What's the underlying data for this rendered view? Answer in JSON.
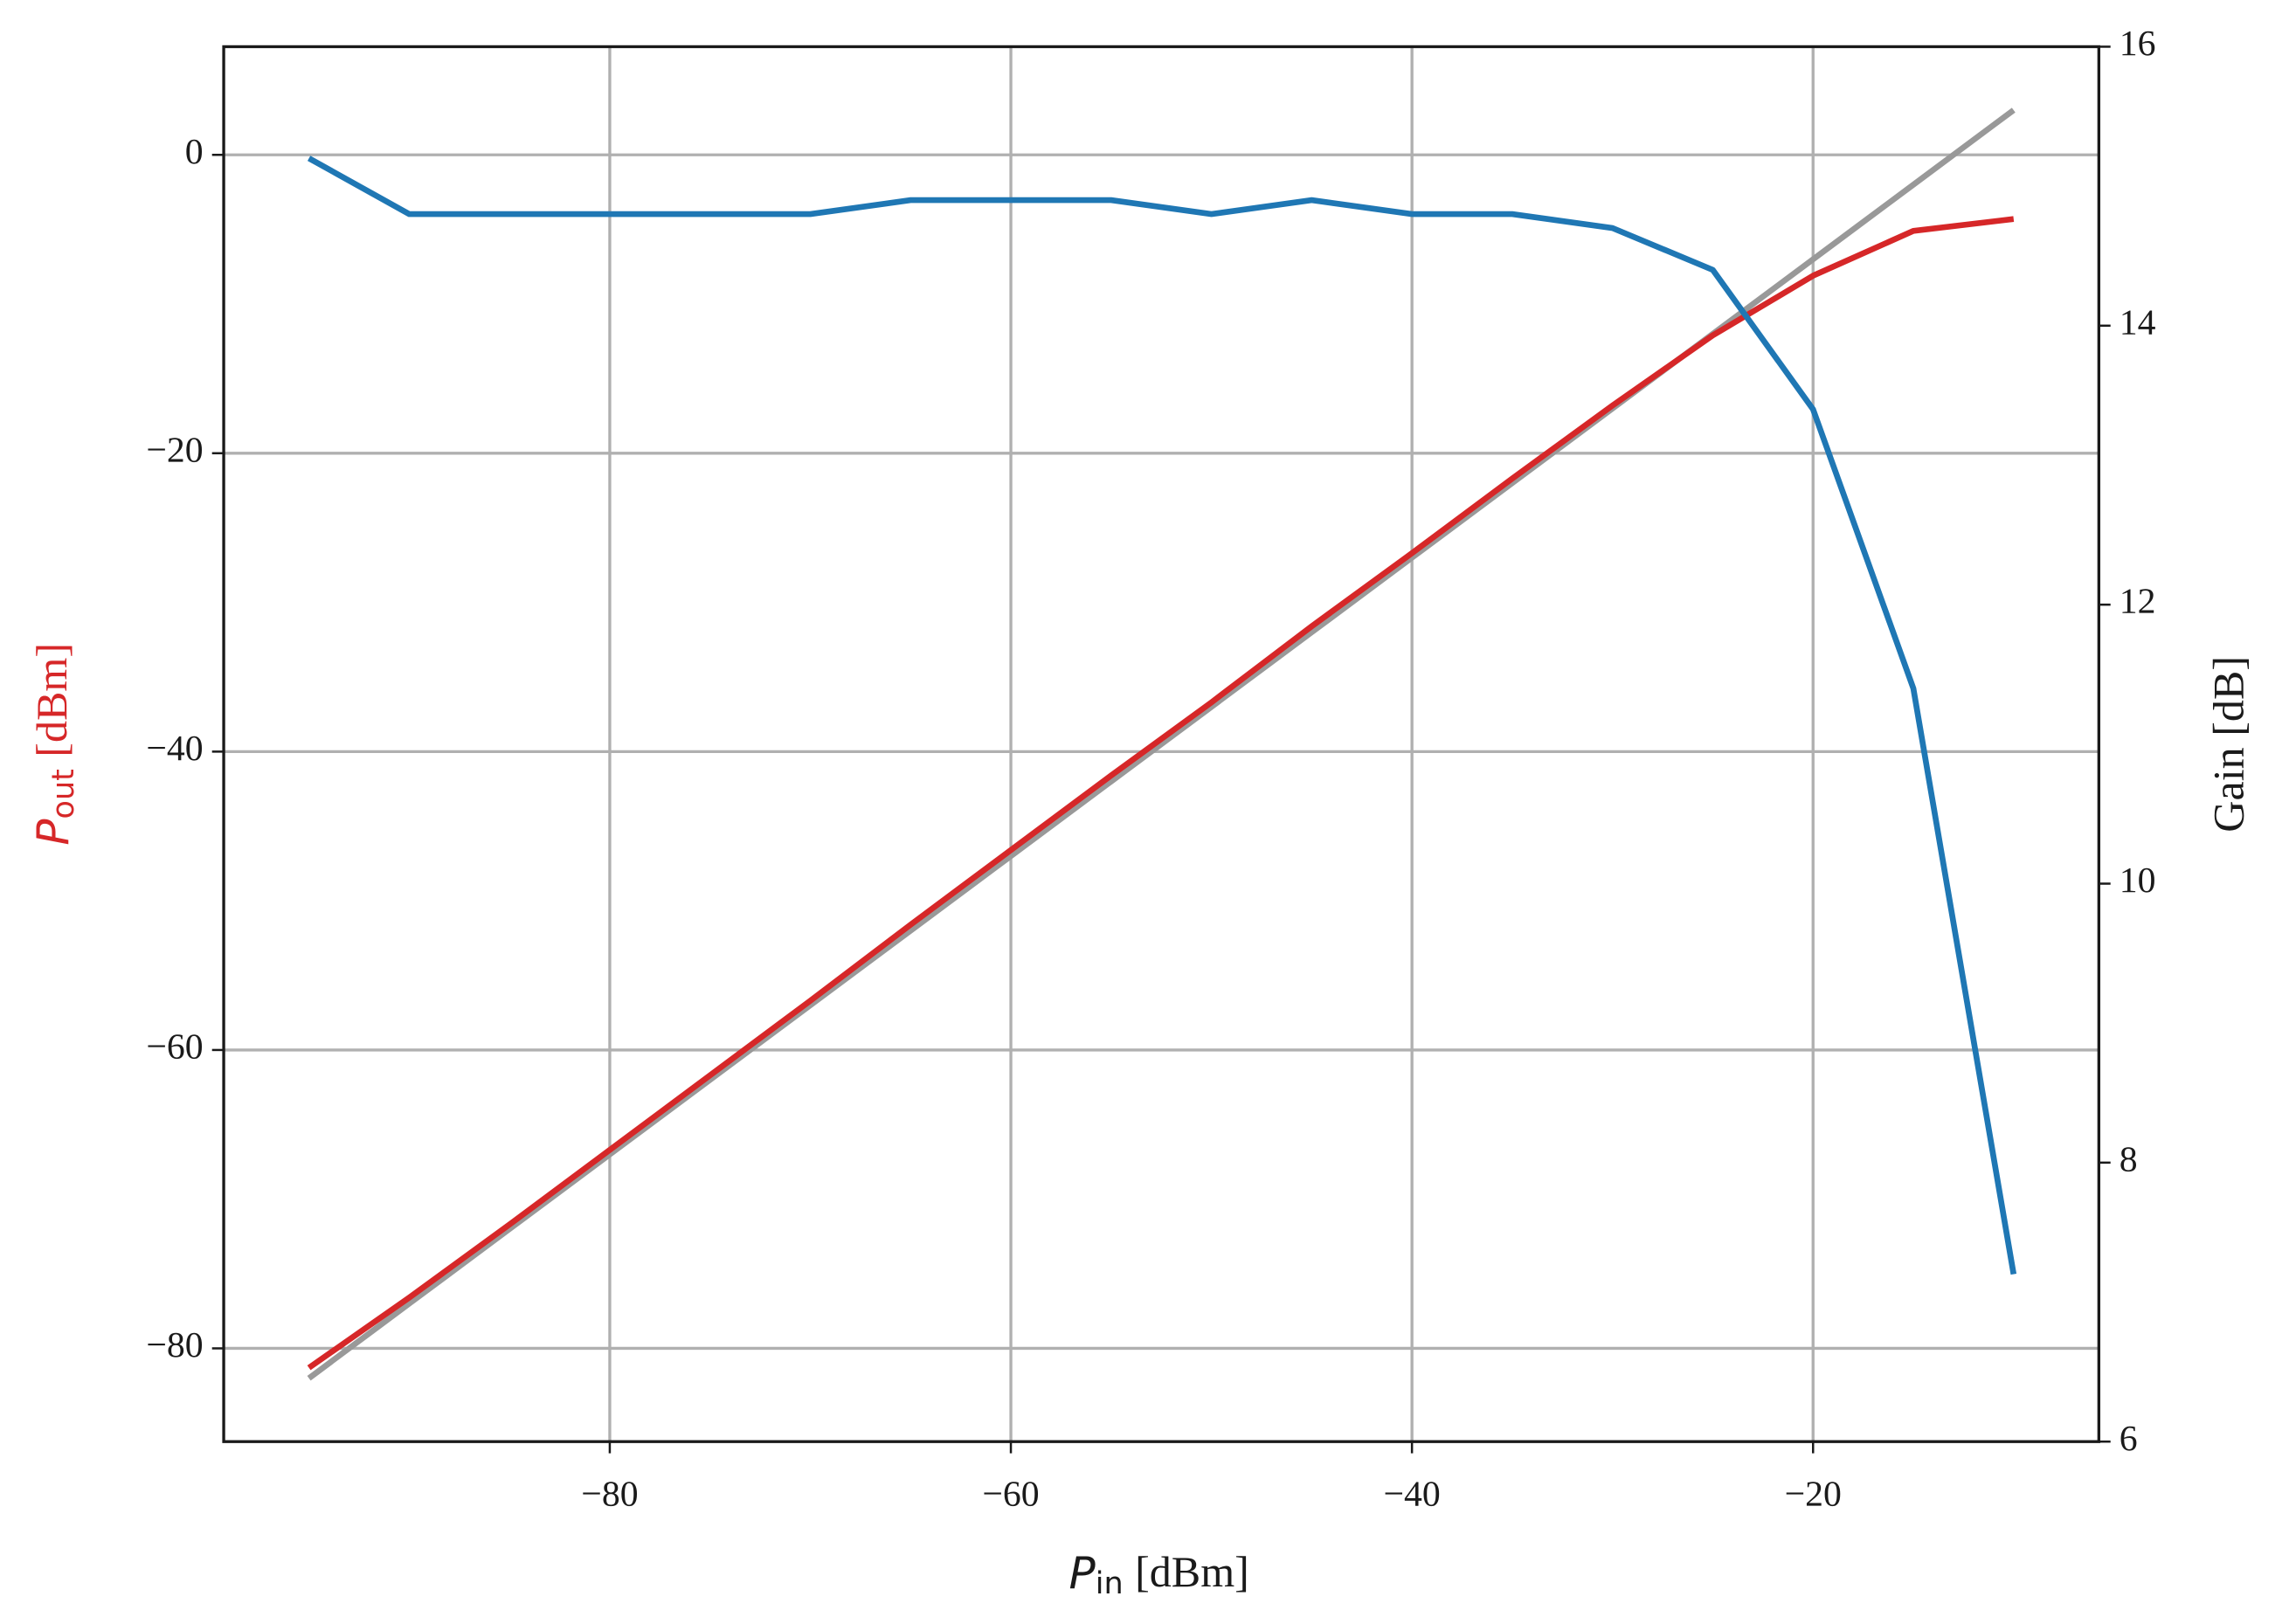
{
  "chart_data": {
    "type": "line",
    "xlabel": {
      "symbol": "P",
      "subscript": "in",
      "unit": "[dBm]"
    },
    "ylabel": {
      "symbol": "P",
      "subscript": "out",
      "unit": "[dBm]",
      "color": "#d62728"
    },
    "y2label": {
      "text": "Gain [dB]",
      "color": "#1f77b4"
    },
    "x": [
      -95,
      -90,
      -85,
      -80,
      -75,
      -70,
      -65,
      -60,
      -55,
      -50,
      -45,
      -40,
      -35,
      -30,
      -25,
      -20,
      -15,
      -10
    ],
    "series": [
      {
        "color": "#999999",
        "values": [
          -82,
          -77,
          -72,
          -67,
          -62,
          -57,
          -52,
          -47,
          -42,
          -37,
          -32,
          -27,
          -22,
          -17,
          -12,
          -7,
          -2,
          3
        ]
      },
      {
        "color": "#d62728",
        "values": [
          -81.3,
          -76.6,
          -71.7,
          -66.7,
          -61.7,
          -56.7,
          -51.6,
          -46.6,
          -41.6,
          -36.7,
          -31.6,
          -26.7,
          -21.7,
          -16.8,
          -12.1,
          -8.1,
          -5.1,
          -4.3
        ]
      },
      {
        "color": "#1f77b4",
        "axis": "y2",
        "values": [
          15.2,
          14.8,
          14.8,
          14.8,
          14.8,
          14.8,
          14.9,
          14.9,
          14.9,
          14.8,
          14.9,
          14.8,
          14.8,
          14.7,
          14.4,
          13.4,
          11.4,
          7.2
        ]
      }
    ],
    "xlim": [
      -99.25,
      -5.75
    ],
    "xticks": [
      {
        "value": -80,
        "label": "−80"
      },
      {
        "value": -60,
        "label": "−60"
      },
      {
        "value": -40,
        "label": "−40"
      },
      {
        "value": -20,
        "label": "−20"
      }
    ],
    "ylim": [
      -86.25,
      7.25
    ],
    "yticks": [
      {
        "value": -80,
        "label": "−80"
      },
      {
        "value": -60,
        "label": "−60"
      },
      {
        "value": -40,
        "label": "−40"
      },
      {
        "value": -20,
        "label": "−20"
      },
      0
    ],
    "y2lim": [
      6,
      16
    ],
    "y2ticks": [
      6,
      8,
      10,
      12,
      14,
      16
    ],
    "grid": true
  }
}
